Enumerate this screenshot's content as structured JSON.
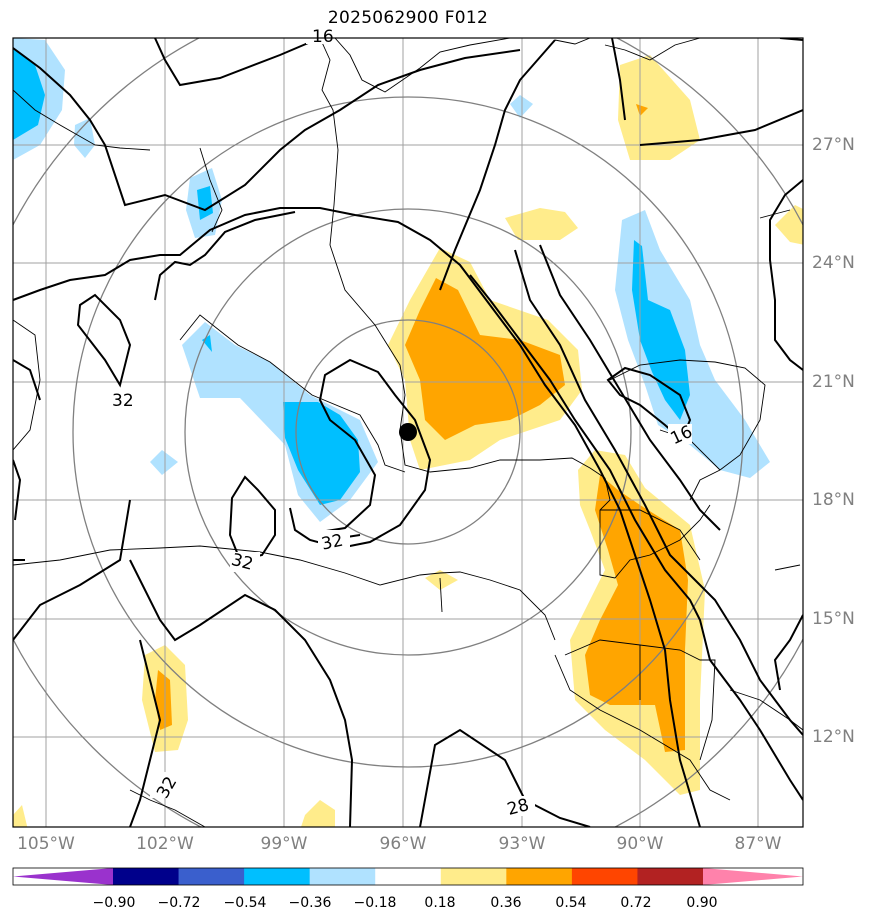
{
  "title": "2025062900 F012",
  "lat_labels": [
    "27°N",
    "24°N",
    "21°N",
    "18°N",
    "15°N",
    "12°N"
  ],
  "lon_labels": [
    "105°W",
    "102°W",
    "99°W",
    "96°W",
    "93°W",
    "90°W",
    "87°W"
  ],
  "contour_labels": [
    "16",
    "32",
    "32",
    "32",
    "32",
    "16",
    "28"
  ],
  "colorbar": {
    "labels": [
      "−0.90",
      "−0.72",
      "−0.54",
      "−0.36",
      "−0.18",
      "0.18",
      "0.36",
      "0.54",
      "0.72",
      "0.90"
    ],
    "colors": [
      "#9a32cd",
      "#00008b",
      "#3a5fcd",
      "#00bfff",
      "#b0e2ff",
      "#ffffff",
      "#ffec8b",
      "#ffa500",
      "#ff4500",
      "#b22222",
      "#ff82ab"
    ]
  },
  "colors": {
    "grid": "#a0a0a0",
    "range_rings": "#808080",
    "contour": "#000000"
  },
  "center_marker": "storm-center-dot"
}
